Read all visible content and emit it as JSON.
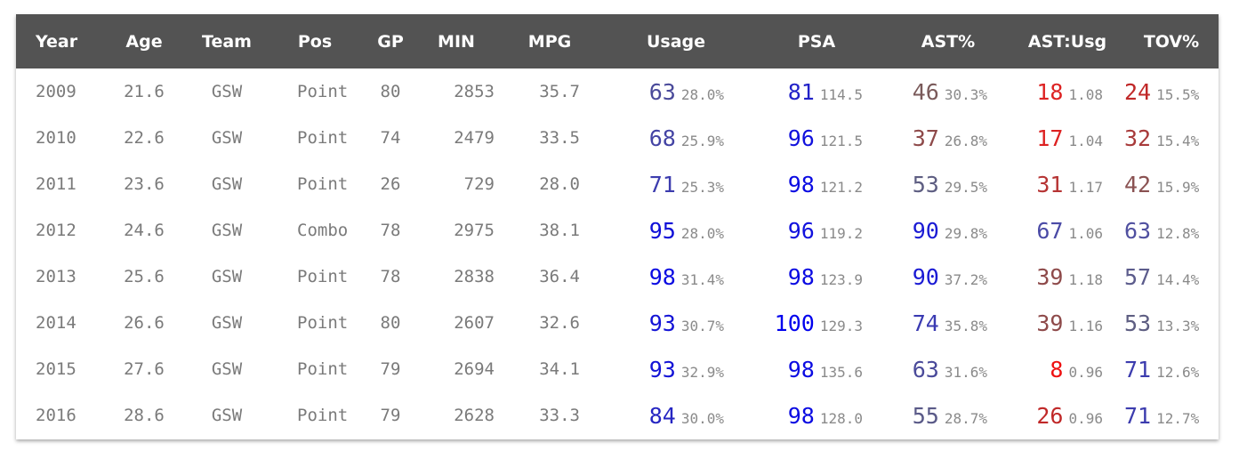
{
  "headers": {
    "year": "Year",
    "age": "Age",
    "team": "Team",
    "pos": "Pos",
    "gp": "GP",
    "min": "MIN",
    "mpg": "MPG",
    "usage": "Usage",
    "psa": "PSA",
    "ast": "AST%",
    "astusg": "AST:Usg",
    "tov": "TOV%"
  },
  "rows": [
    {
      "year": "2009",
      "age": "21.6",
      "team": "GSW",
      "pos": "Point",
      "gp": "80",
      "min": "2853",
      "mpg": "35.7",
      "usage": {
        "rank": "63",
        "raw": "28.0%",
        "color": "#4a4a9a"
      },
      "psa": {
        "rank": "81",
        "raw": "114.5",
        "color": "#2222c8"
      },
      "ast": {
        "rank": "46",
        "raw": "30.3%",
        "color": "#7a5a5a"
      },
      "astusg": {
        "rank": "18",
        "raw": "1.08",
        "color": "#dd2222"
      },
      "tov": {
        "rank": "24",
        "raw": "15.5%",
        "color": "#c02828"
      }
    },
    {
      "year": "2010",
      "age": "22.6",
      "team": "GSW",
      "pos": "Point",
      "gp": "74",
      "min": "2479",
      "mpg": "33.5",
      "usage": {
        "rank": "68",
        "raw": "25.9%",
        "color": "#4444a4"
      },
      "psa": {
        "rank": "96",
        "raw": "121.5",
        "color": "#1111dd"
      },
      "ast": {
        "rank": "37",
        "raw": "26.8%",
        "color": "#8e4a4a"
      },
      "astusg": {
        "rank": "17",
        "raw": "1.04",
        "color": "#dd2222"
      },
      "tov": {
        "rank": "32",
        "raw": "15.4%",
        "color": "#a83a3a"
      }
    },
    {
      "year": "2011",
      "age": "23.6",
      "team": "GSW",
      "pos": "Point",
      "gp": "26",
      "min": "729",
      "mpg": "28.0",
      "usage": {
        "rank": "71",
        "raw": "25.3%",
        "color": "#3c3cae"
      },
      "psa": {
        "rank": "98",
        "raw": "121.2",
        "color": "#0b0be2"
      },
      "ast": {
        "rank": "53",
        "raw": "29.5%",
        "color": "#5e5e82"
      },
      "astusg": {
        "rank": "31",
        "raw": "1.17",
        "color": "#b63434"
      },
      "tov": {
        "rank": "42",
        "raw": "15.9%",
        "color": "#8a5252"
      }
    },
    {
      "year": "2012",
      "age": "24.6",
      "team": "GSW",
      "pos": "Combo",
      "gp": "78",
      "min": "2975",
      "mpg": "38.1",
      "usage": {
        "rank": "95",
        "raw": "28.0%",
        "color": "#1010d8"
      },
      "psa": {
        "rank": "96",
        "raw": "119.2",
        "color": "#1111dd"
      },
      "ast": {
        "rank": "90",
        "raw": "29.8%",
        "color": "#1a1ad4"
      },
      "astusg": {
        "rank": "67",
        "raw": "1.06",
        "color": "#4a4aa6"
      },
      "tov": {
        "rank": "63",
        "raw": "12.8%",
        "color": "#5050a0"
      }
    },
    {
      "year": "2013",
      "age": "25.6",
      "team": "GSW",
      "pos": "Point",
      "gp": "78",
      "min": "2838",
      "mpg": "36.4",
      "usage": {
        "rank": "98",
        "raw": "31.4%",
        "color": "#0b0be2"
      },
      "psa": {
        "rank": "98",
        "raw": "123.9",
        "color": "#0b0be2"
      },
      "ast": {
        "rank": "90",
        "raw": "37.2%",
        "color": "#1a1ad4"
      },
      "astusg": {
        "rank": "39",
        "raw": "1.18",
        "color": "#8e4a4a"
      },
      "tov": {
        "rank": "57",
        "raw": "14.4%",
        "color": "#5c5c8c"
      }
    },
    {
      "year": "2014",
      "age": "26.6",
      "team": "GSW",
      "pos": "Point",
      "gp": "80",
      "min": "2607",
      "mpg": "32.6",
      "usage": {
        "rank": "93",
        "raw": "30.7%",
        "color": "#1414d6"
      },
      "psa": {
        "rank": "100",
        "raw": "129.3",
        "color": "#0000ee"
      },
      "ast": {
        "rank": "74",
        "raw": "35.8%",
        "color": "#3a3ab2"
      },
      "astusg": {
        "rank": "39",
        "raw": "1.16",
        "color": "#8e4a4a"
      },
      "tov": {
        "rank": "53",
        "raw": "13.3%",
        "color": "#5e5e82"
      }
    },
    {
      "year": "2015",
      "age": "27.6",
      "team": "GSW",
      "pos": "Point",
      "gp": "79",
      "min": "2694",
      "mpg": "34.1",
      "usage": {
        "rank": "93",
        "raw": "32.9%",
        "color": "#1414d6"
      },
      "psa": {
        "rank": "98",
        "raw": "135.6",
        "color": "#0b0be2"
      },
      "ast": {
        "rank": "63",
        "raw": "31.6%",
        "color": "#4a4a9a"
      },
      "astusg": {
        "rank": "8",
        "raw": "0.96",
        "color": "#ee1111"
      },
      "tov": {
        "rank": "71",
        "raw": "12.6%",
        "color": "#3c3cae"
      }
    },
    {
      "year": "2016",
      "age": "28.6",
      "team": "GSW",
      "pos": "Point",
      "gp": "79",
      "min": "2628",
      "mpg": "33.3",
      "usage": {
        "rank": "84",
        "raw": "30.0%",
        "color": "#2626c2"
      },
      "psa": {
        "rank": "98",
        "raw": "128.0",
        "color": "#0b0be2"
      },
      "ast": {
        "rank": "55",
        "raw": "28.7%",
        "color": "#5a5a88"
      },
      "astusg": {
        "rank": "26",
        "raw": "0.96",
        "color": "#c02828"
      },
      "tov": {
        "rank": "71",
        "raw": "12.7%",
        "color": "#3c3cae"
      }
    }
  ]
}
